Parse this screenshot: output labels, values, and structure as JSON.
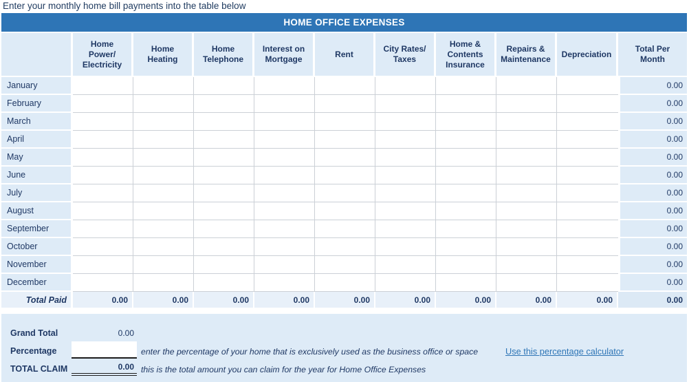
{
  "instruction": "Enter your monthly home bill payments into the table below",
  "title": "HOME OFFICE EXPENSES",
  "table": {
    "columns": [
      "Home\nPower/\nElectricity",
      "Home\nHeating",
      "Home\nTelephone",
      "Interest on\nMortgage",
      "Rent",
      "City Rates/\nTaxes",
      "Home &\nContents\nInsurance",
      "Repairs &\nMaintenance",
      "Depreciation",
      "Total Per\nMonth"
    ],
    "months": [
      "January",
      "February",
      "March",
      "April",
      "May",
      "June",
      "July",
      "August",
      "September",
      "October",
      "November",
      "December"
    ],
    "empty_cell": "",
    "month_total_value": "0.00",
    "total_row_label": "Total Paid",
    "column_totals": [
      "0.00",
      "0.00",
      "0.00",
      "0.00",
      "0.00",
      "0.00",
      "0.00",
      "0.00",
      "0.00",
      "0.00"
    ]
  },
  "summary": {
    "grand_total_label": "Grand Total",
    "grand_total_value": "0.00",
    "percentage_label": "Percentage",
    "percentage_value": "",
    "percentage_note": "enter the percentage of your home that is exclusively used as the business office or space",
    "percentage_link": "Use this percentage calculator",
    "total_claim_label": "TOTAL CLAIM",
    "total_claim_value": "0.00",
    "total_claim_note": "this is the total amount you can claim for the year for Home Office Expenses"
  },
  "colors": {
    "header_bar": "#2E75B6",
    "cell_blue": "#DEEBF7",
    "total_row_blue": "#E8F0F9",
    "text_navy": "#1F3864",
    "link_blue": "#2E75B6",
    "grid_line": "#CBD0D6"
  }
}
